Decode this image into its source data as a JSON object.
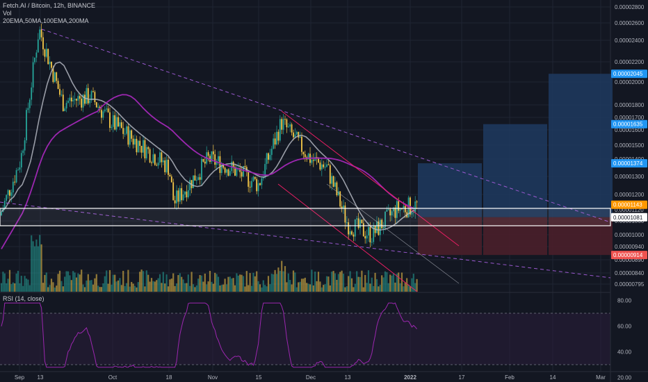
{
  "legend": {
    "symbol": "Fetch.AI / Bitcoin, 12h, BINANCE",
    "vol": "Vol",
    "mas": "20EMA,50MA,100EMA,200MA",
    "rsi": "RSI (14, close)"
  },
  "colors": {
    "background": "#131722",
    "candle_up": "#26a69a",
    "candle_down": "#f7c948",
    "ma_gray": "#b2b5be",
    "ma_purple": "#9c27b0",
    "trend_dash": "#9b59d0",
    "channel_red": "#e91e63",
    "box_blue": "#1e3a5f",
    "box_red": "#4a1f2a",
    "rsi_line": "#9c27b0",
    "label_blue": "#2196f3",
    "label_orange": "#ff9800",
    "label_red": "#ef5350"
  },
  "chart_data": {
    "type": "candlestick",
    "price_axis": {
      "ticks": [
        "0.00002800",
        "0.00002600",
        "0.00002400",
        "0.00002200",
        "0.00002000",
        "0.00001800",
        "0.00001700",
        "0.00001600",
        "0.00001500",
        "0.00001400",
        "0.00001300",
        "0.00001200",
        "0.00001120",
        "0.00001060",
        "0.00001000",
        "0.00000940",
        "0.00000890",
        "0.00000840",
        "0.00000795"
      ],
      "scale": "log"
    },
    "price_labels": [
      {
        "value": "0.00002045",
        "color": "label_blue"
      },
      {
        "value": "0.00001635",
        "color": "label_blue"
      },
      {
        "value": "0.00001374",
        "color": "label_blue"
      },
      {
        "value": "0.00001143",
        "color": "label_orange"
      },
      {
        "value": "0.00001081",
        "color": "plain"
      },
      {
        "value": "0.00000914",
        "color": "label_red"
      }
    ],
    "x_axis": {
      "ticks": [
        "Sep",
        "13",
        "Oct",
        "18",
        "Nov",
        "15",
        "Dec",
        "13",
        "2022",
        "17",
        "Feb",
        "14",
        "Mar"
      ]
    },
    "rsi_axis": {
      "ticks": [
        "80.00",
        "60.00",
        "40.00",
        "20.00"
      ],
      "bands": [
        70,
        30
      ],
      "ylim": [
        20,
        85
      ]
    },
    "series_trend": [
      {
        "name": "",
        "type": "close",
        "x": [
          "Sep 1",
          "Sep 8",
          "Sep 13",
          "Sep 20",
          "Oct 1",
          "Oct 10",
          "Oct 18",
          "Oct 25",
          "Nov 1",
          "Nov 8",
          "Nov 15",
          "Nov 22",
          "Dec 1",
          "Dec 6",
          "Dec 13",
          "Dec 20",
          "Dec 27",
          "Jan 1"
        ],
        "values": [
          1.09e-05,
          1.4e-05,
          2.5e-05,
          1.8e-05,
          1.85e-05,
          1.65e-05,
          1.35e-05,
          1.15e-05,
          1.4e-05,
          1.35e-05,
          1.25e-05,
          1.65e-05,
          1.4e-05,
          1.35e-05,
          1.05e-05,
          1e-05,
          1.12e-05,
          1.14e-05
        ]
      }
    ],
    "positions": [
      {
        "entry": 1.081e-05,
        "target": 1.374e-05,
        "stop": 9.14e-06
      },
      {
        "entry": 1.081e-05,
        "target": 1.635e-05,
        "stop": 9.14e-06
      },
      {
        "entry": 1.081e-05,
        "target": 2.045e-05,
        "stop": 9.14e-06
      }
    ]
  }
}
